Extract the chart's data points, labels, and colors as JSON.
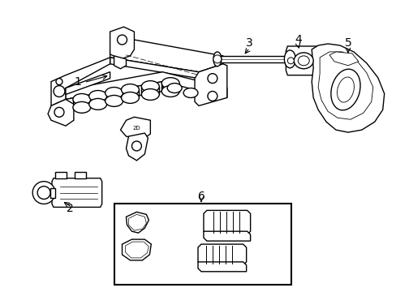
{
  "background_color": "#ffffff",
  "line_color": "#000000",
  "line_width": 1.0,
  "figsize": [
    4.89,
    3.6
  ],
  "dpi": 100
}
